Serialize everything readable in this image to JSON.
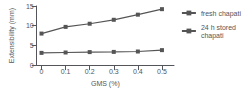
{
  "chart_data": {
    "type": "line",
    "xlabel": "GMS (%)",
    "ylabel": "Extensibility (mm)",
    "x": [
      0,
      0.1,
      0.2,
      0.3,
      0.4,
      0.5
    ],
    "series": [
      {
        "name": "fresh chapati",
        "color": "#555555",
        "marker": "square",
        "values": [
          8.0,
          9.7,
          10.5,
          11.5,
          12.8,
          14.2
        ]
      },
      {
        "name": "24 h stored\nchapati",
        "color": "#555555",
        "marker": "square",
        "values": [
          3.1,
          3.2,
          3.3,
          3.35,
          3.45,
          3.8
        ]
      }
    ],
    "xlim": [
      -0.02,
      0.55
    ],
    "xticks": [
      0,
      0.1,
      0.2,
      0.3,
      0.4,
      0.5
    ],
    "ylim": [
      0,
      15
    ],
    "yticks": [
      0,
      5,
      10,
      15
    ],
    "grid": false,
    "legend": "upper right"
  }
}
